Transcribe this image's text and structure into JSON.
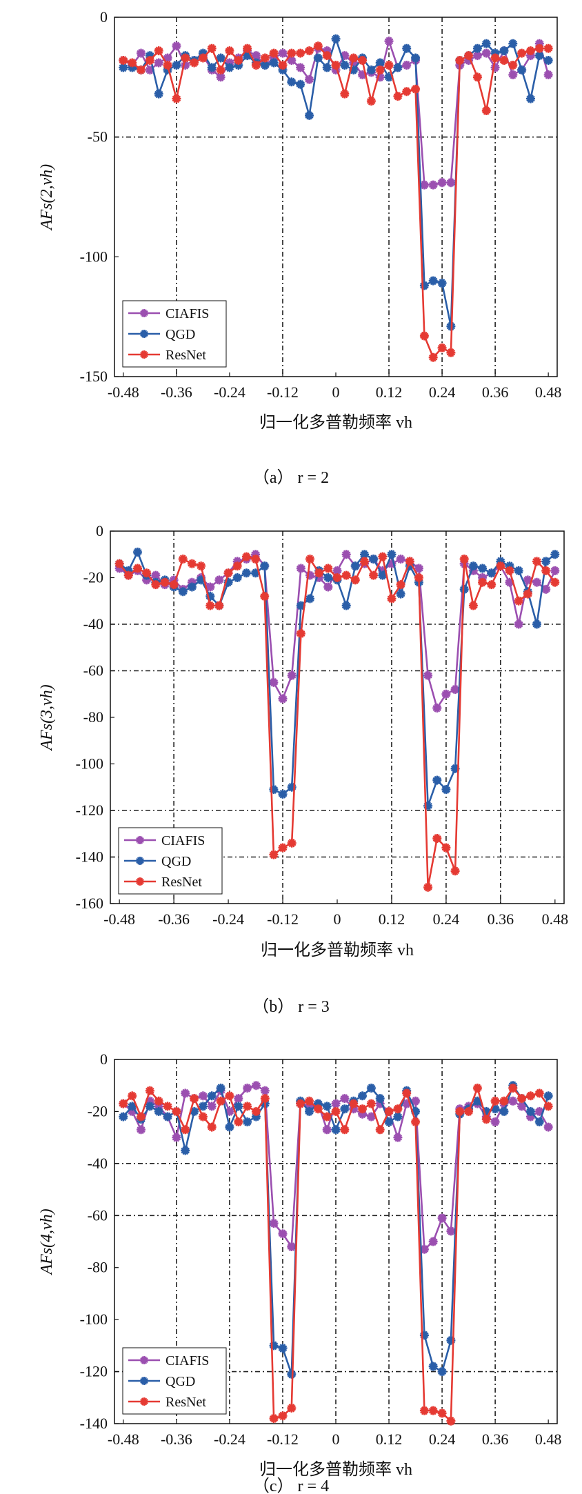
{
  "figure": {
    "panels": [
      {
        "caption": "（a） r = 2",
        "ylabel": "AFs(2,vh)"
      },
      {
        "caption": "（b） r = 3",
        "ylabel": "AFs(3,vh)"
      },
      {
        "caption": "（c） r = 4",
        "ylabel": "AFs(4,vh)"
      }
    ]
  },
  "chart_data": [
    {
      "type": "line",
      "title": "",
      "xlabel": "归一化多普勒频率 vh",
      "ylabel": "AFs(2,vh)",
      "caption": "（a） r = 2",
      "xlim": [
        -0.5,
        0.5
      ],
      "ylim": [
        -150,
        0
      ],
      "xticks": [
        -0.48,
        -0.36,
        -0.24,
        -0.12,
        0,
        0.12,
        0.24,
        0.36,
        0.48
      ],
      "xticklabels": [
        "-0.48",
        "-0.36",
        "-0.24",
        "-0.12",
        "0",
        "0.12",
        "0.24",
        "0.36",
        "0.48"
      ],
      "yticks": [
        0,
        -50,
        -100,
        -150
      ],
      "yticklabels": [
        "0",
        "-50",
        "-100",
        "-150"
      ],
      "grid_y": [
        -50
      ],
      "grid_x": [
        -0.36,
        -0.12,
        0.12,
        0.24,
        0.36
      ],
      "legend_position": "bottom-left",
      "x": [
        -0.48,
        -0.46,
        -0.44,
        -0.42,
        -0.4,
        -0.38,
        -0.36,
        -0.34,
        -0.32,
        -0.3,
        -0.28,
        -0.26,
        -0.24,
        -0.22,
        -0.2,
        -0.18,
        -0.16,
        -0.14,
        -0.12,
        -0.1,
        -0.08,
        -0.06,
        -0.04,
        -0.02,
        0.0,
        0.02,
        0.04,
        0.06,
        0.08,
        0.1,
        0.12,
        0.14,
        0.16,
        0.18,
        0.2,
        0.22,
        0.24,
        0.26,
        0.28,
        0.3,
        0.32,
        0.34,
        0.36,
        0.38,
        0.4,
        0.42,
        0.44,
        0.46,
        0.48
      ],
      "series": [
        {
          "name": "CIAFIS",
          "color": "#9b4fb0",
          "values": [
            -18,
            -20,
            -15,
            -22,
            -19,
            -17,
            -12,
            -20,
            -18,
            -16,
            -22,
            -25,
            -19,
            -17,
            -14,
            -16,
            -20,
            -17,
            -15,
            -18,
            -21,
            -26,
            -13,
            -14,
            -22,
            -16,
            -19,
            -24,
            -23,
            -25,
            -10,
            -21,
            -20,
            -18,
            -70,
            -70,
            -69,
            -69,
            -20,
            -18,
            -16,
            -15,
            -21,
            -14,
            -24,
            -22,
            -16,
            -11,
            -24
          ]
        },
        {
          "name": "QGD",
          "color": "#2a5ea8",
          "values": [
            -21,
            -21,
            -22,
            -16,
            -32,
            -22,
            -20,
            -16,
            -18,
            -15,
            -21,
            -17,
            -21,
            -20,
            -16,
            -19,
            -20,
            -19,
            -22,
            -27,
            -28,
            -41,
            -17,
            -21,
            -9,
            -20,
            -22,
            -17,
            -22,
            -19,
            -25,
            -21,
            -13,
            -17,
            -112,
            -110,
            -111,
            -129,
            -18,
            -16,
            -13,
            -11,
            -15,
            -14,
            -11,
            -22,
            -34,
            -16,
            -18
          ]
        },
        {
          "name": "ResNet",
          "color": "#e53a33",
          "values": [
            -18,
            -19,
            -22,
            -18,
            -14,
            -20,
            -34,
            -17,
            -19,
            -17,
            -13,
            -22,
            -14,
            -18,
            -13,
            -20,
            -17,
            -15,
            -20,
            -15,
            -15,
            -14,
            -12,
            -16,
            -20,
            -32,
            -17,
            -18,
            -35,
            -22,
            -20,
            -33,
            -31,
            -30,
            -133,
            -142,
            -138,
            -140,
            -18,
            -16,
            -25,
            -39,
            -17,
            -18,
            -20,
            -15,
            -14,
            -13,
            -13
          ]
        }
      ]
    },
    {
      "type": "line",
      "title": "",
      "xlabel": "归一化多普勒频率 vh",
      "ylabel": "AFs(3,vh)",
      "caption": "（b） r = 3",
      "xlim": [
        -0.5,
        0.5
      ],
      "ylim": [
        -160,
        0
      ],
      "xticks": [
        -0.48,
        -0.36,
        -0.24,
        -0.12,
        0,
        0.12,
        0.24,
        0.36,
        0.48
      ],
      "xticklabels": [
        "-0.48",
        "-0.36",
        "-0.24",
        "-0.12",
        "0",
        "0.12",
        "0.24",
        "0.36",
        "0.48"
      ],
      "yticks": [
        0,
        -20,
        -40,
        -60,
        -80,
        -100,
        -120,
        -140,
        -160
      ],
      "yticklabels": [
        "0",
        "-20",
        "-40",
        "-60",
        "-80",
        "-100",
        "-120",
        "-140",
        "-160"
      ],
      "grid_y": [
        -40,
        -60,
        -120,
        -140
      ],
      "grid_x": [
        -0.36,
        -0.12,
        0.12,
        0.24,
        0.36
      ],
      "legend_position": "bottom-left",
      "x": [
        -0.48,
        -0.46,
        -0.44,
        -0.42,
        -0.4,
        -0.38,
        -0.36,
        -0.34,
        -0.32,
        -0.3,
        -0.28,
        -0.26,
        -0.24,
        -0.22,
        -0.2,
        -0.18,
        -0.16,
        -0.14,
        -0.12,
        -0.1,
        -0.08,
        -0.06,
        -0.04,
        -0.02,
        0.0,
        0.02,
        0.04,
        0.06,
        0.08,
        0.1,
        0.12,
        0.14,
        0.16,
        0.18,
        0.2,
        0.22,
        0.24,
        0.26,
        0.28,
        0.3,
        0.32,
        0.34,
        0.36,
        0.38,
        0.4,
        0.42,
        0.44,
        0.46,
        0.48
      ],
      "series": [
        {
          "name": "CIAFIS",
          "color": "#9b4fb0",
          "values": [
            -16,
            -19,
            -17,
            -21,
            -19,
            -23,
            -21,
            -25,
            -22,
            -20,
            -24,
            -21,
            -18,
            -13,
            -12,
            -10,
            -15,
            -65,
            -72,
            -62,
            -16,
            -19,
            -20,
            -24,
            -17,
            -10,
            -15,
            -14,
            -12,
            -17,
            -14,
            -12,
            -13,
            -16,
            -62,
            -76,
            -70,
            -68,
            -14,
            -17,
            -20,
            -18,
            -15,
            -22,
            -40,
            -21,
            -22,
            -25,
            -17
          ]
        },
        {
          "name": "QGD",
          "color": "#2a5ea8",
          "values": [
            -14,
            -17,
            -9,
            -19,
            -22,
            -21,
            -24,
            -26,
            -24,
            -21,
            -28,
            -32,
            -22,
            -20,
            -18,
            -18,
            -15,
            -111,
            -113,
            -110,
            -32,
            -29,
            -17,
            -20,
            -21,
            -32,
            -15,
            -10,
            -12,
            -19,
            -10,
            -27,
            -15,
            -22,
            -118,
            -107,
            -111,
            -102,
            -25,
            -15,
            -16,
            -18,
            -13,
            -15,
            -17,
            -26,
            -40,
            -13,
            -10
          ]
        },
        {
          "name": "ResNet",
          "color": "#e53a33",
          "values": [
            -14,
            -19,
            -16,
            -18,
            -23,
            -22,
            -23,
            -12,
            -14,
            -15,
            -32,
            -32,
            -18,
            -15,
            -11,
            -12,
            -28,
            -139,
            -136,
            -134,
            -44,
            -12,
            -18,
            -16,
            -20,
            -19,
            -21,
            -13,
            -19,
            -11,
            -29,
            -23,
            -13,
            -20,
            -153,
            -132,
            -136,
            -146,
            -12,
            -32,
            -22,
            -23,
            -15,
            -17,
            -30,
            -27,
            -13,
            -17,
            -22
          ]
        }
      ]
    },
    {
      "type": "line",
      "title": "",
      "xlabel": "归一化多普勒频率 vh",
      "ylabel": "AFs(4,vh)",
      "caption": "（c） r = 4",
      "xlim": [
        -0.5,
        0.5
      ],
      "ylim": [
        -140,
        0
      ],
      "xticks": [
        -0.48,
        -0.36,
        -0.24,
        -0.12,
        0,
        0.12,
        0.24,
        0.36,
        0.48
      ],
      "xticklabels": [
        "-0.48",
        "-0.36",
        "-0.24",
        "-0.12",
        "0",
        "0.12",
        "0.24",
        "0.36",
        "0.48"
      ],
      "yticks": [
        0,
        -20,
        -40,
        -60,
        -80,
        -100,
        -120,
        -140
      ],
      "yticklabels": [
        "0",
        "-20",
        "-40",
        "-60",
        "-80",
        "-100",
        "-120",
        "-140"
      ],
      "grid_y": [
        -40,
        -60,
        -120
      ],
      "grid_x": [
        -0.36,
        -0.24,
        -0.12,
        0,
        0.12,
        0.24,
        0.36
      ],
      "legend_position": "bottom-left",
      "x": [
        -0.48,
        -0.46,
        -0.44,
        -0.42,
        -0.4,
        -0.38,
        -0.36,
        -0.34,
        -0.32,
        -0.3,
        -0.28,
        -0.26,
        -0.24,
        -0.22,
        -0.2,
        -0.18,
        -0.16,
        -0.14,
        -0.12,
        -0.1,
        -0.08,
        -0.06,
        -0.04,
        -0.02,
        0.0,
        0.02,
        0.04,
        0.06,
        0.08,
        0.1,
        0.12,
        0.14,
        0.16,
        0.18,
        0.2,
        0.22,
        0.24,
        0.26,
        0.28,
        0.3,
        0.32,
        0.34,
        0.36,
        0.38,
        0.4,
        0.42,
        0.44,
        0.46,
        0.48
      ],
      "series": [
        {
          "name": "CIAFIS",
          "color": "#9b4fb0",
          "values": [
            -17,
            -20,
            -27,
            -16,
            -18,
            -22,
            -30,
            -13,
            -15,
            -14,
            -18,
            -12,
            -20,
            -15,
            -11,
            -10,
            -12,
            -63,
            -67,
            -72,
            -17,
            -18,
            -17,
            -27,
            -17,
            -15,
            -19,
            -21,
            -22,
            -17,
            -20,
            -30,
            -17,
            -16,
            -73,
            -70,
            -61,
            -66,
            -19,
            -18,
            -17,
            -22,
            -24,
            -17,
            -16,
            -18,
            -22,
            -20,
            -26
          ]
        },
        {
          "name": "QGD",
          "color": "#2a5ea8",
          "values": [
            -22,
            -18,
            -23,
            -18,
            -20,
            -22,
            -20,
            -35,
            -20,
            -18,
            -14,
            -11,
            -26,
            -18,
            -24,
            -22,
            -17,
            -110,
            -111,
            -121,
            -16,
            -20,
            -17,
            -18,
            -27,
            -19,
            -16,
            -14,
            -11,
            -15,
            -24,
            -22,
            -12,
            -20,
            -106,
            -118,
            -120,
            -108,
            -21,
            -19,
            -16,
            -20,
            -19,
            -20,
            -10,
            -15,
            -20,
            -24,
            -14
          ]
        },
        {
          "name": "ResNet",
          "color": "#e53a33",
          "values": [
            -17,
            -14,
            -22,
            -12,
            -16,
            -18,
            -20,
            -27,
            -15,
            -22,
            -26,
            -16,
            -14,
            -24,
            -18,
            -20,
            -15,
            -138,
            -137,
            -134,
            -17,
            -16,
            -19,
            -22,
            -20,
            -27,
            -17,
            -19,
            -17,
            -27,
            -20,
            -19,
            -13,
            -24,
            -135,
            -135,
            -136,
            -139,
            -20,
            -20,
            -11,
            -23,
            -16,
            -16,
            -11,
            -15,
            -14,
            -13,
            -18
          ]
        }
      ]
    }
  ]
}
